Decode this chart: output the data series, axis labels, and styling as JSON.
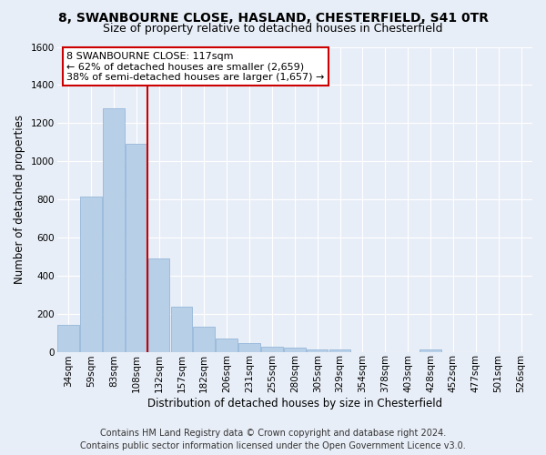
{
  "title1": "8, SWANBOURNE CLOSE, HASLAND, CHESTERFIELD, S41 0TR",
  "title2": "Size of property relative to detached houses in Chesterfield",
  "xlabel": "Distribution of detached houses by size in Chesterfield",
  "ylabel": "Number of detached properties",
  "categories": [
    "34sqm",
    "59sqm",
    "83sqm",
    "108sqm",
    "132sqm",
    "157sqm",
    "182sqm",
    "206sqm",
    "231sqm",
    "255sqm",
    "280sqm",
    "305sqm",
    "329sqm",
    "354sqm",
    "378sqm",
    "403sqm",
    "428sqm",
    "452sqm",
    "477sqm",
    "501sqm",
    "526sqm"
  ],
  "values": [
    140,
    815,
    1280,
    1090,
    490,
    238,
    133,
    70,
    47,
    28,
    20,
    14,
    10,
    0,
    0,
    0,
    13,
    0,
    0,
    0,
    0
  ],
  "bar_color": "#b8cfe8",
  "bar_edge_color": "#8aafd4",
  "background_color": "#e8eef7",
  "grid_color": "#ffffff",
  "vline_color": "#cc0000",
  "vline_pos": 3.5,
  "annotation_text": "8 SWANBOURNE CLOSE: 117sqm\n← 62% of detached houses are smaller (2,659)\n38% of semi-detached houses are larger (1,657) →",
  "annotation_box_color": "#ffffff",
  "annotation_box_edge_color": "#cc0000",
  "ylim": [
    0,
    1600
  ],
  "yticks": [
    0,
    200,
    400,
    600,
    800,
    1000,
    1200,
    1400,
    1600
  ],
  "footer1": "Contains HM Land Registry data © Crown copyright and database right 2024.",
  "footer2": "Contains public sector information licensed under the Open Government Licence v3.0.",
  "title1_fontsize": 10,
  "title2_fontsize": 9,
  "axis_label_fontsize": 8.5,
  "tick_fontsize": 7.5,
  "footer_fontsize": 7,
  "annotation_fontsize": 8
}
